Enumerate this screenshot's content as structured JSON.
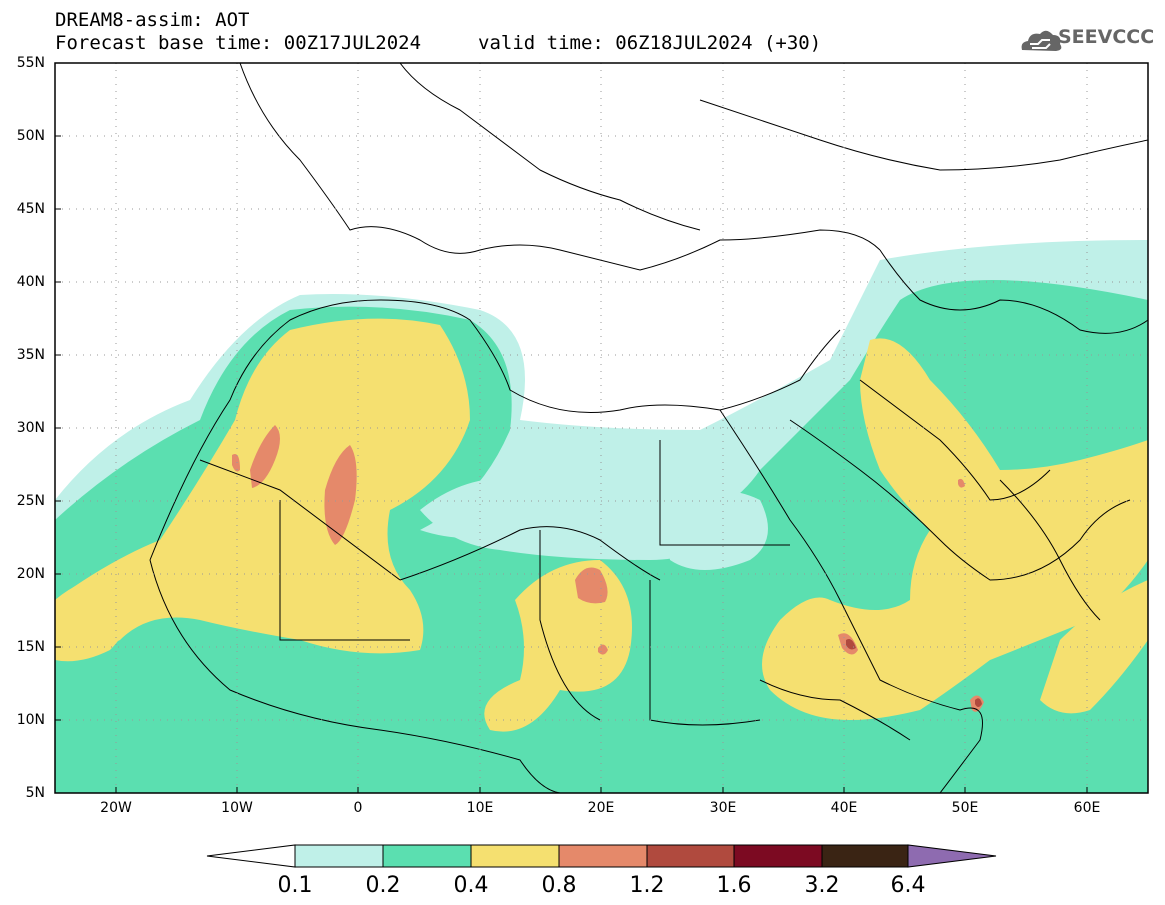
{
  "header": {
    "line1": "DREAM8-assim: AOT",
    "line2": "Forecast base time: 00Z17JUL2024",
    "valid": "valid time: 06Z18JUL2024 (+30)"
  },
  "logo": {
    "text": "SEEVCCC",
    "icon": "cloud-icon"
  },
  "map": {
    "lat_labels": [
      "55N",
      "50N",
      "45N",
      "40N",
      "35N",
      "30N",
      "25N",
      "20N",
      "15N",
      "10N",
      "5N"
    ],
    "lon_labels": [
      "20W",
      "10W",
      "0",
      "10E",
      "20E",
      "30E",
      "40E",
      "50E",
      "60E"
    ],
    "colors": {
      "c1": "#bff0e8",
      "c2": "#5bdfb0",
      "c3": "#f5e070",
      "c4": "#e5896a",
      "c5": "#b04a3e",
      "c6": "#7c0a22",
      "c7": "#3a2414",
      "c8": "#8e6bb0"
    }
  },
  "colorbar": {
    "ticks": [
      "0.1",
      "0.2",
      "0.4",
      "0.8",
      "1.2",
      "1.6",
      "3.2",
      "6.4"
    ]
  }
}
